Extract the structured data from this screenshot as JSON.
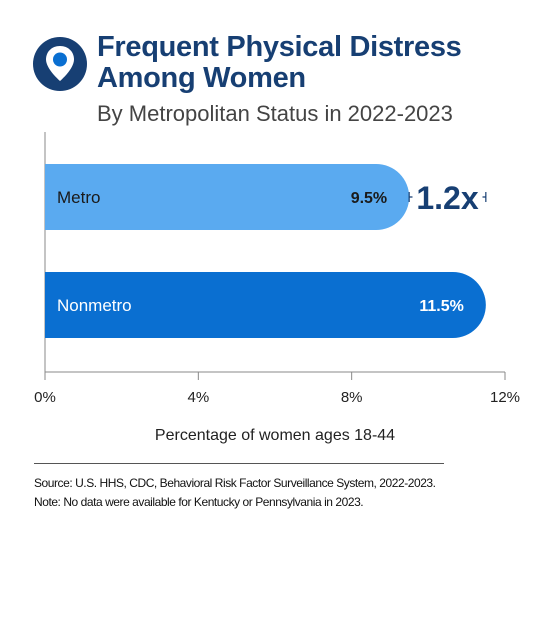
{
  "header": {
    "title": "Frequent Physical Distress Among Women",
    "subtitle": "By Metropolitan Status in 2022-2023",
    "icon": "location-pin-icon"
  },
  "colors": {
    "navy": "#173f73",
    "metro": "#5aaaf0",
    "nonmetro": "#0a6fd1",
    "axis": "#888888"
  },
  "chart_data": {
    "type": "bar",
    "orientation": "horizontal",
    "categories": [
      "Metro",
      "Nonmetro"
    ],
    "values": [
      9.5,
      11.5
    ],
    "value_labels": [
      "9.5%",
      "11.5%"
    ],
    "xlabel": "Percentage of women ages 18-44",
    "xlim": [
      0,
      12
    ],
    "xticks": [
      "0%",
      "4%",
      "8%",
      "12%"
    ],
    "tick_values": [
      0,
      4,
      8,
      12
    ],
    "annotation": "1.2x",
    "grid": false
  },
  "footer": {
    "source": "Source: U.S. HHS, CDC, Behavioral Risk Factor Surveillance System, 2022-2023.",
    "note": "Note: No data were available for Kentucky or Pennsylvania in 2023."
  }
}
